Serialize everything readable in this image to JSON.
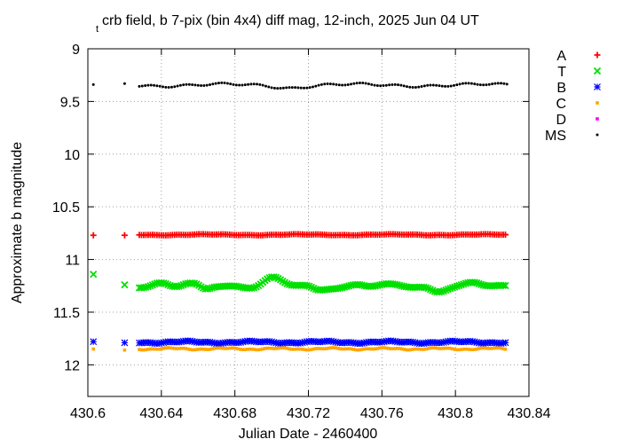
{
  "chart_data": {
    "type": "scatter",
    "title_sub": "t",
    "title_main": "crb field, b 7-pix (bin 4x4) diff mag, 12-inch, 2025 Jun 04 UT",
    "xlabel": "Julian Date - 2460400",
    "ylabel": "Approximate b magnitude",
    "xlim": [
      430.6,
      430.84
    ],
    "ylim": [
      12.3,
      9.0
    ],
    "y_inverted": true,
    "grid": true,
    "grid_style": "dotted",
    "legend_position": "outside-right-top",
    "x_ticks": [
      "430.6",
      "430.64",
      "430.68",
      "430.72",
      "430.76",
      "430.8",
      "430.84"
    ],
    "x_tick_values": [
      430.6,
      430.64,
      430.68,
      430.72,
      430.76,
      430.8,
      430.84
    ],
    "y_ticks": [
      "9",
      "9.5",
      "10",
      "10.5",
      "11",
      "11.5",
      "12"
    ],
    "y_tick_values": [
      9,
      9.5,
      10,
      10.5,
      11,
      11.5,
      12
    ],
    "series": [
      {
        "name": "A",
        "color": "#ff0000",
        "marker": "plus",
        "isolated": [
          [
            430.603,
            10.77
          ],
          [
            430.62,
            10.77
          ]
        ],
        "start": 430.628,
        "end": 430.828,
        "step": 0.0012,
        "base": 10.765,
        "waves": [
          [
            0.004,
            0.05,
            0
          ],
          [
            0.002,
            0.013,
            1.3
          ]
        ]
      },
      {
        "name": "T",
        "color": "#00e000",
        "marker": "x",
        "isolated": [
          [
            430.603,
            11.14
          ],
          [
            430.62,
            11.24
          ]
        ],
        "start": 430.628,
        "end": 430.828,
        "step": 0.0012,
        "base": 11.255,
        "waves": [
          [
            0.015,
            0.05,
            0.3
          ],
          [
            0.01,
            0.021,
            1.7
          ]
        ],
        "bumps": [
          [
            430.64,
            0.006,
            -0.04
          ],
          [
            430.654,
            0.005,
            -0.02
          ],
          [
            430.664,
            0.004,
            0.04
          ],
          [
            430.7,
            0.007,
            -0.08
          ],
          [
            430.725,
            0.005,
            0.04
          ],
          [
            430.747,
            0.005,
            -0.02
          ],
          [
            430.79,
            0.005,
            0.04
          ],
          [
            430.81,
            0.005,
            -0.02
          ]
        ]
      },
      {
        "name": "B",
        "color": "#0000ff",
        "marker": "star",
        "isolated": [
          [
            430.603,
            11.78
          ],
          [
            430.62,
            11.79
          ]
        ],
        "start": 430.628,
        "end": 430.828,
        "step": 0.0012,
        "base": 11.785,
        "waves": [
          [
            0.008,
            0.037,
            0.4
          ],
          [
            0.005,
            0.011,
            2.1
          ]
        ]
      },
      {
        "name": "C",
        "color": "#ffa500",
        "marker": "square",
        "isolated": [
          [
            430.603,
            11.85
          ],
          [
            430.62,
            11.86
          ]
        ],
        "start": 430.628,
        "end": 430.828,
        "step": 0.0012,
        "base": 11.848,
        "waves": [
          [
            0.007,
            0.029,
            0.9
          ],
          [
            0.004,
            0.009,
            0.2
          ]
        ]
      },
      {
        "name": "D",
        "color": "#ff00ff",
        "marker": "square",
        "isolated": [],
        "start": null,
        "end": null,
        "step": null,
        "base": null,
        "waves": []
      },
      {
        "name": "MS",
        "color": "#000000",
        "marker": "dot",
        "isolated": [
          [
            430.603,
            9.34
          ],
          [
            430.62,
            9.33
          ]
        ],
        "start": 430.628,
        "end": 430.828,
        "step": 0.0016,
        "base": 9.345,
        "waves": [
          [
            0.012,
            0.07,
            0.5
          ],
          [
            0.01,
            0.019,
            2.5
          ]
        ],
        "bumps": [
          [
            430.71,
            0.01,
            0.02
          ]
        ]
      }
    ]
  }
}
